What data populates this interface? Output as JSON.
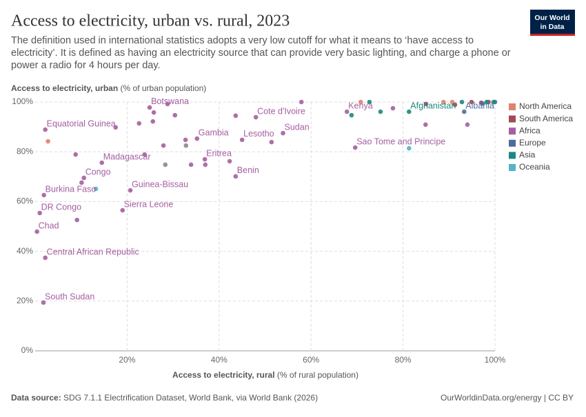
{
  "chart_data": {
    "type": "scatter",
    "title": "Access to electricity, urban vs. rural, 2023",
    "subtitle": "The definition used in international statistics adopts a very low cutoff for what it means to ‘have access to electricity’. It is defined as having an electricity source that can provide very basic lighting, and charge a phone or power a radio for 4 hours per day.",
    "ylabel": "Access to electricity, urban",
    "ylabel_unit": "(% of urban population)",
    "xlabel": "Access to electricity, rural",
    "xlabel_unit": "(% of rural population)",
    "source_label": "Data source:",
    "source": "SDG 7.1.1 Electrification Dataset, World Bank, via World Bank (2026)",
    "footer_right": "OurWorldinData.org/energy | CC BY",
    "logo": [
      "Our World",
      "in Data"
    ],
    "xlim": [
      0,
      100
    ],
    "ylim": [
      0,
      100
    ],
    "xticks": [
      {
        "value": 20,
        "label": "20%"
      },
      {
        "value": 40,
        "label": "40%"
      },
      {
        "value": 60,
        "label": "60%"
      },
      {
        "value": 80,
        "label": "80%"
      },
      {
        "value": 100,
        "label": "100%"
      }
    ],
    "yticks": [
      {
        "value": 0,
        "label": "0%"
      },
      {
        "value": 20,
        "label": "20%"
      },
      {
        "value": 40,
        "label": "40%"
      },
      {
        "value": 60,
        "label": "60%"
      },
      {
        "value": 80,
        "label": "80%"
      },
      {
        "value": 100,
        "label": "100%"
      }
    ],
    "grid": true,
    "series": [
      {
        "name": "North America",
        "color": "#e0826d",
        "x": [
          2.8,
          70.8,
          88.8,
          90.7
        ],
        "values": [
          84.2,
          100,
          100,
          100
        ],
        "labels": [
          null,
          null,
          null,
          null
        ]
      },
      {
        "name": "South America",
        "color": "#a04a57",
        "x": [
          85,
          91.3,
          94.9,
          97,
          98.6
        ],
        "values": [
          99.2,
          98.9,
          100,
          99.7,
          100
        ],
        "labels": [
          null,
          null,
          null,
          null,
          null
        ]
      },
      {
        "name": "Africa",
        "color": "#a55fa0",
        "x": [
          1.8,
          2.2,
          0.4,
          1.0,
          1.9,
          10.6,
          14.5,
          20.7,
          19.0,
          2.2,
          24.9,
          35.2,
          36.9,
          43.6,
          45.0,
          48.0,
          67.8,
          69.6,
          53.9,
          10.1,
          8.8,
          9.1,
          17.5,
          22.6,
          23.8,
          25.6,
          25.8,
          28.8,
          30.4,
          27.9,
          32.7,
          33.9,
          37.0,
          42.3,
          43.6,
          51.4,
          57.9,
          77.8,
          84.9,
          94.0
        ],
        "values": [
          19.4,
          37.4,
          47.9,
          55.4,
          62.6,
          69.5,
          75.6,
          64.5,
          56.5,
          88.9,
          97.8,
          85.3,
          77.0,
          70.1,
          84.8,
          93.9,
          96.1,
          81.7,
          87.5,
          67.6,
          78.9,
          52.6,
          89.8,
          91.4,
          78.9,
          92.2,
          95.8,
          99.2,
          94.7,
          82.5,
          84.8,
          74.8,
          74.8,
          76.2,
          94.5,
          83.9,
          100,
          97.5,
          90.9,
          90.9
        ],
        "labels": [
          "South Sudan",
          "Central African Republic",
          "Chad",
          "DR Congo",
          "Burkina Faso",
          "Congo",
          "Madagascar",
          "Guinea-Bissau",
          "Sierra Leone",
          "Equatorial Guinea",
          "Botswana",
          "Gambia",
          "Eritrea",
          "Benin",
          "Lesotho",
          "Cote d'Ivoire",
          "Kenya",
          "Sao Tome and Principe",
          "Sudan",
          null,
          null,
          null,
          null,
          null,
          null,
          null,
          null,
          null,
          null,
          null,
          null,
          null,
          null,
          null,
          null,
          null,
          null,
          null,
          null,
          null
        ]
      },
      {
        "name": "Europe",
        "color": "#4f6b9e",
        "x": [
          93.3,
          97.3,
          100
        ],
        "values": [
          96.1,
          99.4,
          100
        ],
        "labels": [
          "Albania",
          null,
          null
        ]
      },
      {
        "name": "Asia",
        "color": "#1a8a80",
        "x": [
          81.3,
          72.7,
          68.8,
          75.1,
          92.8,
          98.2,
          99.7
        ],
        "values": [
          96.1,
          100,
          94.7,
          96.1,
          100,
          100,
          100
        ],
        "labels": [
          "Afghanistan",
          null,
          null,
          null,
          null,
          null,
          null
        ]
      },
      {
        "name": "Oceania",
        "color": "#52b4c4",
        "x": [
          81.3,
          13.2
        ],
        "values": [
          81.4,
          65.1
        ],
        "labels": [
          null,
          null
        ]
      },
      {
        "color": "#8a8a8a",
        "x": [
          28.3,
          32.8
        ],
        "values": [
          74.8,
          82.5
        ],
        "labels": [
          null,
          null
        ]
      }
    ]
  }
}
